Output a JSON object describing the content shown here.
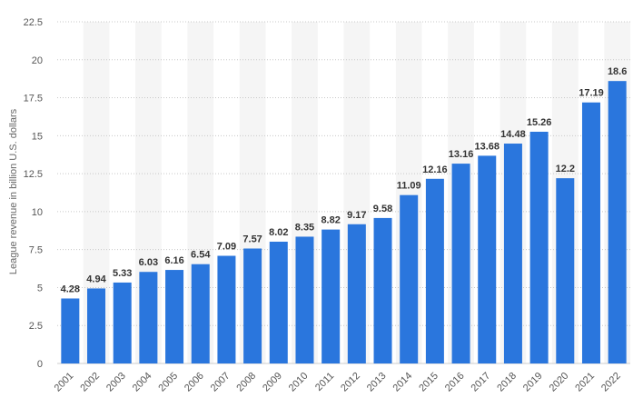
{
  "chart_data": {
    "type": "bar",
    "categories": [
      "2001",
      "2002",
      "2003",
      "2004",
      "2005",
      "2006",
      "2007",
      "2008",
      "2009",
      "2010",
      "2011",
      "2012",
      "2013",
      "2014",
      "2015",
      "2016",
      "2017",
      "2018",
      "2019",
      "2020",
      "2021",
      "2022"
    ],
    "values": [
      4.28,
      4.94,
      5.33,
      6.03,
      6.16,
      6.54,
      7.09,
      7.57,
      8.02,
      8.35,
      8.82,
      9.17,
      9.58,
      11.09,
      12.16,
      13.16,
      13.68,
      14.48,
      15.26,
      12.2,
      17.19,
      18.6
    ],
    "ylabel": "League revenue in billion U.S. dollars",
    "xlabel": "",
    "ylim": [
      0,
      22.5
    ],
    "yticks": [
      0,
      2.5,
      5,
      7.5,
      10,
      12.5,
      15,
      17.5,
      20,
      22.5
    ],
    "grid": true,
    "bar_color": "#2a76dd",
    "stripe_color": "#f5f5f5"
  }
}
